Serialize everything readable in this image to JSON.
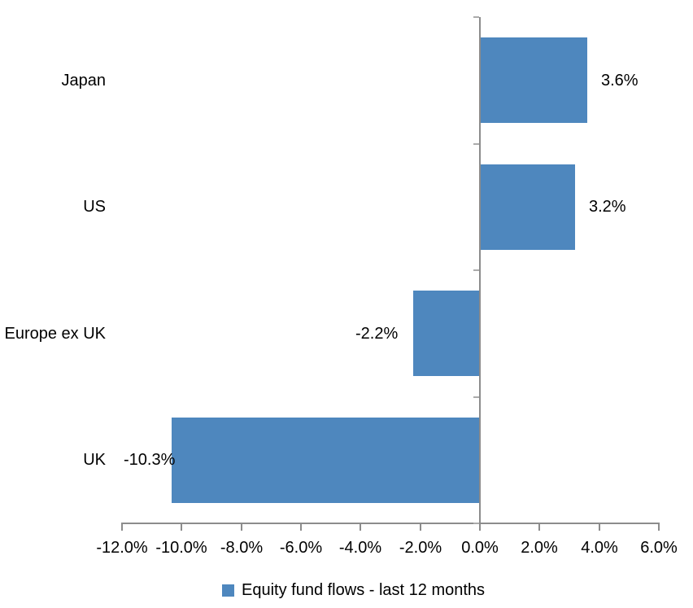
{
  "chart_data": {
    "type": "bar",
    "orientation": "horizontal",
    "title": "",
    "categories": [
      "Japan",
      "US",
      "Europe ex UK",
      "UK"
    ],
    "values": [
      3.6,
      3.2,
      -2.2,
      -10.3
    ],
    "data_labels": [
      "3.6%",
      "3.2%",
      "-2.2%",
      "-10.3%"
    ],
    "series_name": "Equity fund flows - last 12 months",
    "xlim": [
      -12,
      6
    ],
    "x_tick_values": [
      -12,
      -10,
      -8,
      -6,
      -4,
      -2,
      0,
      2,
      4,
      6
    ],
    "x_tick_labels": [
      "-12.0%",
      "-10.0%",
      "-8.0%",
      "-6.0%",
      "-4.0%",
      "-2.0%",
      "0.0%",
      "2.0%",
      "4.0%",
      "6.0%"
    ],
    "grid": false,
    "legend_position": "bottom",
    "colors": {
      "bar": "#4E87BE",
      "axis": "#8C8C8C",
      "y_tick": "#ABABAB",
      "text": "#000000",
      "background": "#FFFFFF"
    }
  }
}
